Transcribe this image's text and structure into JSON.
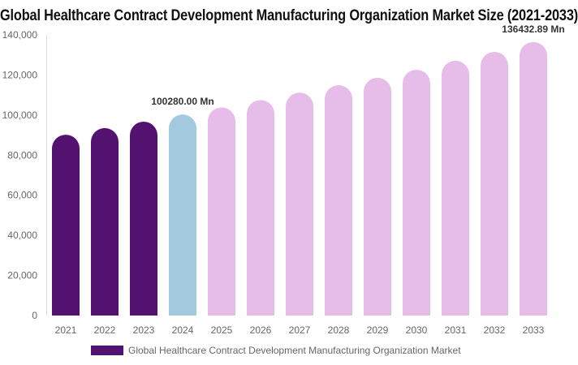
{
  "chart_data": {
    "type": "bar",
    "title": "Global Healthcare Contract Development Manufacturing Organization Market Size (2021-2033)",
    "categories": [
      "2021",
      "2022",
      "2023",
      "2024",
      "2025",
      "2026",
      "2027",
      "2028",
      "2029",
      "2030",
      "2031",
      "2032",
      "2033"
    ],
    "series": [
      {
        "name": "Global Healthcare Contract Development Manufacturing Organization Market",
        "values": [
          90200,
          93500,
          96700,
          100280,
          103800,
          107500,
          111200,
          114900,
          118600,
          122600,
          127100,
          131500,
          136432.89
        ]
      }
    ],
    "colors": {
      "historical": "#541270",
      "current": "#a3c9de",
      "forecast": "#e6bde8"
    },
    "data_labels": [
      {
        "category": "2024",
        "text": "100280.00 Mn"
      },
      {
        "category": "2033",
        "text": "136432.89 Mn"
      }
    ],
    "yticks": [
      "0",
      "20,000",
      "40,000",
      "60,000",
      "80,000",
      "100,000",
      "120,000",
      "140,000"
    ],
    "ylim": [
      0,
      140000
    ],
    "grid": false,
    "legend_position": "bottom",
    "xlabel": "",
    "ylabel": ""
  }
}
